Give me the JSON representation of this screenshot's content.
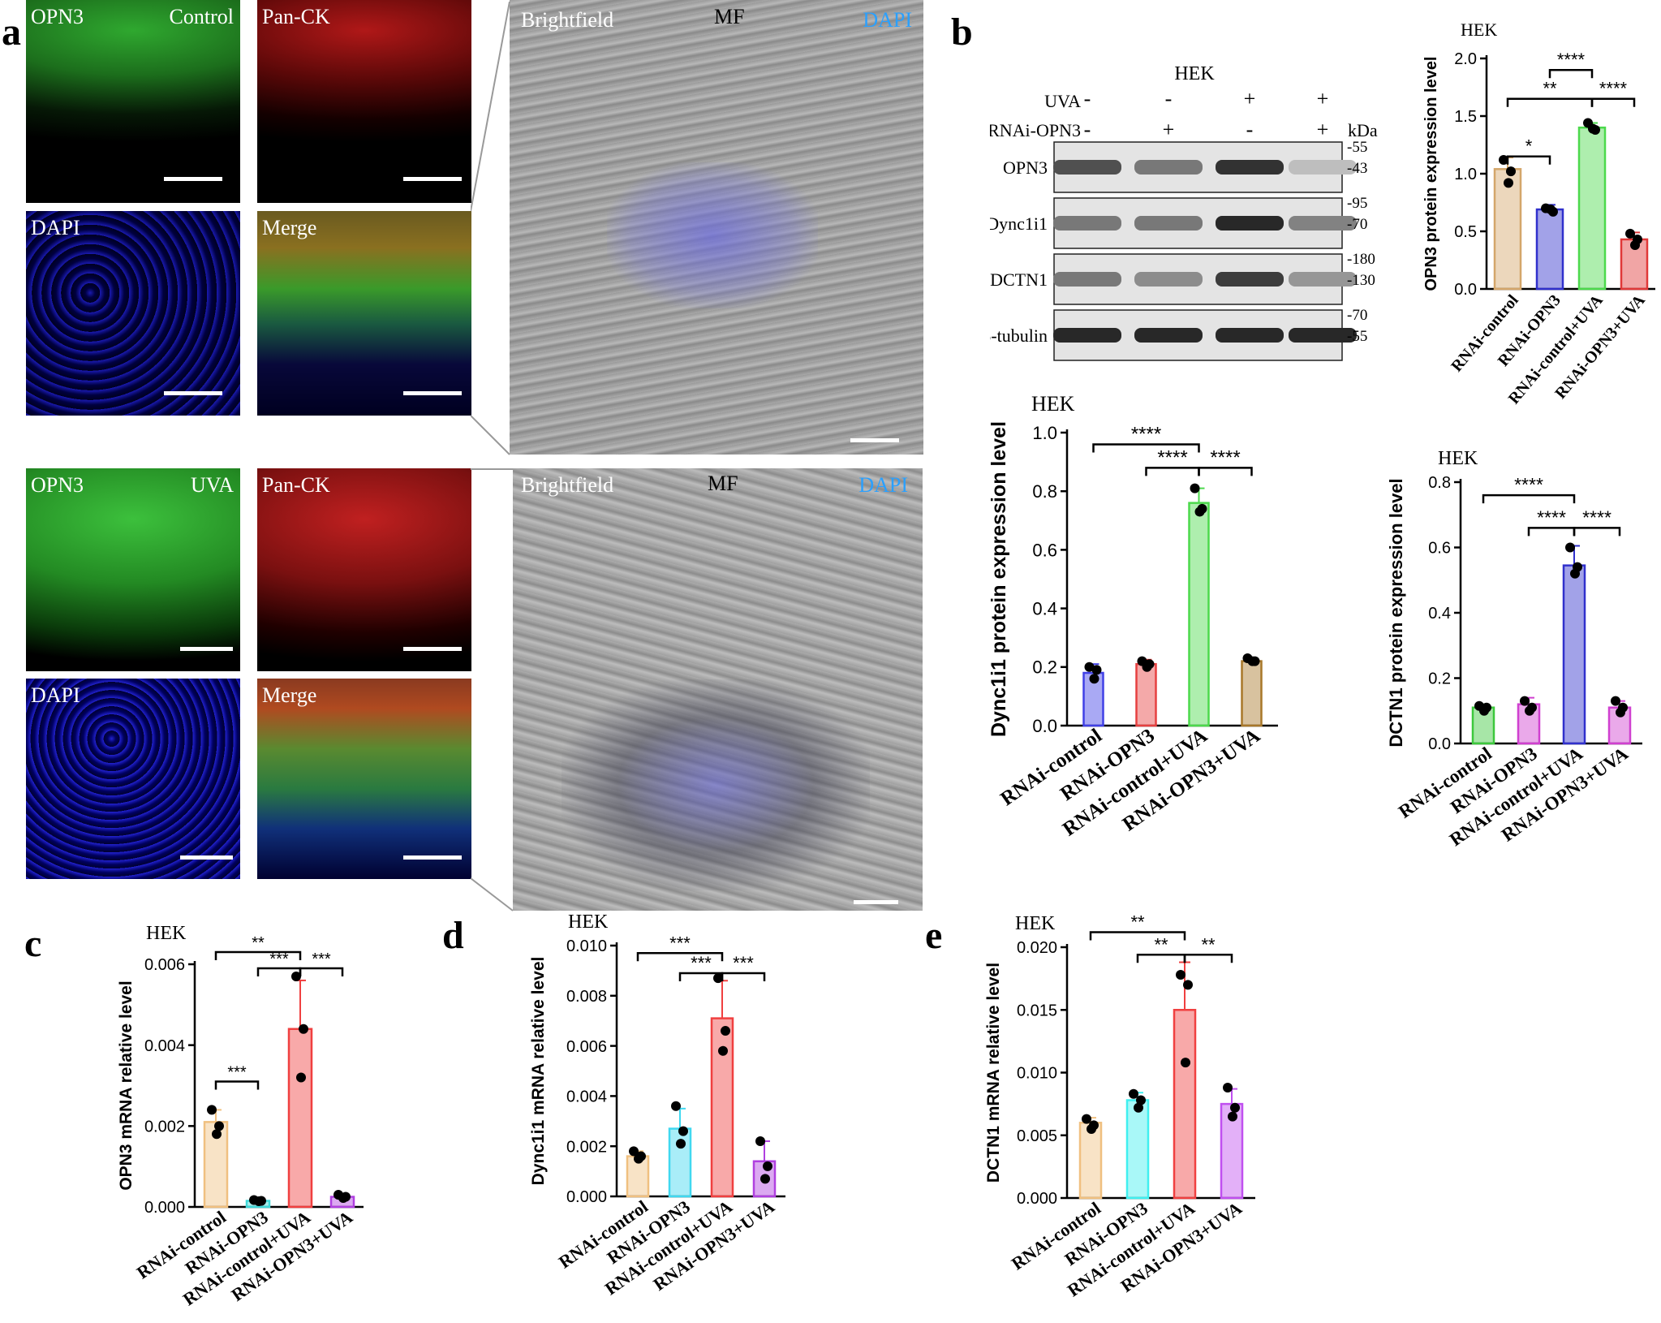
{
  "panels": {
    "a": "a",
    "b": "b",
    "c": "c",
    "d": "d",
    "e": "e"
  },
  "micrographs": {
    "control": {
      "opn3": {
        "label": "OPN3",
        "label2": "Control"
      },
      "panck": {
        "label": "Pan-CK"
      },
      "dapi": {
        "label": "DAPI"
      },
      "merge": {
        "label": "Merge"
      },
      "bright": {
        "label": "Brightfield",
        "mid": "MF",
        "right": "DAPI"
      }
    },
    "uva": {
      "opn3": {
        "label": "OPN3",
        "label2": "UVA"
      },
      "panck": {
        "label": "Pan-CK"
      },
      "dapi": {
        "label": "DAPI"
      },
      "merge": {
        "label": "Merge"
      },
      "bright": {
        "label": "Brightfield",
        "mid": "MF",
        "right": "DAPI"
      }
    }
  },
  "western_blot": {
    "title": "HEK",
    "uva_label": "UVA",
    "rnai_label": "RNAi-OPN3",
    "kda_label": "kDa",
    "uva_signs": [
      "-",
      "-",
      "+",
      "+"
    ],
    "rnai_signs": [
      "-",
      "+",
      "-",
      "+"
    ],
    "rows": [
      {
        "name": "OPN3",
        "markers": [
          "55",
          "43"
        ],
        "intensity": [
          0.75,
          0.55,
          0.9,
          0.2
        ]
      },
      {
        "name": "Dync1i1",
        "markers": [
          "95",
          "70"
        ],
        "intensity": [
          0.55,
          0.55,
          0.95,
          0.5
        ]
      },
      {
        "name": "DCTN1",
        "markers": [
          "180",
          "130"
        ],
        "intensity": [
          0.55,
          0.45,
          0.85,
          0.4
        ]
      },
      {
        "name": "β-tubulin",
        "markers": [
          "70",
          "55"
        ],
        "intensity": [
          0.95,
          0.95,
          0.95,
          0.95
        ]
      }
    ]
  },
  "chart_data": [
    {
      "id": "b_opn3",
      "type": "bar",
      "title": "HEK",
      "ylabel": "OPN3 protein expression level",
      "categories": [
        "RNAi-control",
        "RNAi-OPN3",
        "RNAi-control+UVA",
        "RNAi-OPN3+UVA"
      ],
      "values": [
        1.04,
        0.69,
        1.4,
        0.43
      ],
      "errors": [
        0.1,
        0.04,
        0.04,
        0.06
      ],
      "points": [
        [
          1.12,
          1.02,
          0.92
        ],
        [
          0.7,
          0.67,
          0.69
        ],
        [
          1.44,
          1.38,
          1.39
        ],
        [
          0.48,
          0.43,
          0.38
        ]
      ],
      "colors": [
        "#d4a66a",
        "#3030cc",
        "#4cd94c",
        "#e03838"
      ],
      "ylim": [
        0,
        2.0
      ],
      "yticks": [
        "0.0",
        "0.5",
        "1.0",
        "1.5",
        "2.0"
      ],
      "brackets": [
        {
          "from": 0,
          "to": 1,
          "y": 1.15,
          "label": "*"
        },
        {
          "from": 0,
          "to": 2,
          "y": 1.65,
          "label": "**"
        },
        {
          "from": 1,
          "to": 2,
          "y": 1.9,
          "label": "****"
        },
        {
          "from": 2,
          "to": 3,
          "y": 1.65,
          "label": "****"
        }
      ]
    },
    {
      "id": "b_dync",
      "type": "bar",
      "title": "HEK",
      "ylabel": "Dync1i1 protein expression level",
      "categories": [
        "RNAi-control",
        "RNAi-OPN3",
        "RNAi-control+UVA",
        "RNAi-OPN3+UVA"
      ],
      "values": [
        0.18,
        0.21,
        0.76,
        0.22
      ],
      "errors": [
        0.03,
        0.015,
        0.05,
        0.01
      ],
      "points": [
        [
          0.2,
          0.19,
          0.16
        ],
        [
          0.22,
          0.21,
          0.2
        ],
        [
          0.81,
          0.74,
          0.73
        ],
        [
          0.23,
          0.22,
          0.22
        ]
      ],
      "colors": [
        "#4040e6",
        "#e64040",
        "#4cd94c",
        "#a8782a"
      ],
      "ylim": [
        0,
        1.0
      ],
      "yticks": [
        "0.0",
        "0.2",
        "0.4",
        "0.6",
        "0.8",
        "1.0"
      ],
      "brackets": [
        {
          "from": 0,
          "to": 2,
          "y": 0.96,
          "label": "****"
        },
        {
          "from": 1,
          "to": 2,
          "y": 0.88,
          "label": "****"
        },
        {
          "from": 2,
          "to": 3,
          "y": 0.88,
          "label": "****"
        }
      ]
    },
    {
      "id": "b_dctn",
      "type": "bar",
      "title": "HEK",
      "ylabel": "DCTN1 protein expression level",
      "categories": [
        "RNAi-control",
        "RNAi-OPN3",
        "RNAi-control+UVA",
        "RNAi-OPN3+UVA"
      ],
      "values": [
        0.11,
        0.12,
        0.545,
        0.11
      ],
      "errors": [
        0.01,
        0.02,
        0.06,
        0.02
      ],
      "points": [
        [
          0.115,
          0.11,
          0.1
        ],
        [
          0.13,
          0.11,
          0.1
        ],
        [
          0.6,
          0.54,
          0.52
        ],
        [
          0.13,
          0.11,
          0.095
        ]
      ],
      "colors": [
        "#3cc83c",
        "#d040d0",
        "#3030cc",
        "#d040d0"
      ],
      "ylim": [
        0,
        0.8
      ],
      "yticks": [
        "0.0",
        "0.2",
        "0.4",
        "0.6",
        "0.8"
      ],
      "brackets": [
        {
          "from": 0,
          "to": 2,
          "y": 0.76,
          "label": "****"
        },
        {
          "from": 1,
          "to": 2,
          "y": 0.66,
          "label": "****"
        },
        {
          "from": 2,
          "to": 3,
          "y": 0.66,
          "label": "****"
        }
      ]
    },
    {
      "id": "c",
      "type": "bar",
      "title": "HEK",
      "ylabel": "OPN3 mRNA relative level",
      "categories": [
        "RNAi-control",
        "RNAi-OPN3",
        "RNAi-control+UVA",
        "RNAi-OPN3+UVA"
      ],
      "values": [
        0.0021,
        0.00015,
        0.0044,
        0.00025
      ],
      "errors": [
        0.0003,
        3e-05,
        0.0012,
        5e-05
      ],
      "points": [
        [
          0.0024,
          0.002,
          0.0018
        ],
        [
          0.00017,
          0.00015,
          0.00014
        ],
        [
          0.0057,
          0.0044,
          0.0032
        ],
        [
          0.0003,
          0.00025,
          0.00022
        ]
      ],
      "colors": [
        "#f0c080",
        "#40d8d8",
        "#f04040",
        "#b040e0"
      ],
      "ylim": [
        0,
        0.006
      ],
      "yticks": [
        "0.000",
        "0.002",
        "0.004",
        "0.006"
      ],
      "brackets": [
        {
          "from": 0,
          "to": 1,
          "y": 0.0031,
          "label": "***"
        },
        {
          "from": 0,
          "to": 2,
          "y": 0.0063,
          "label": "**"
        },
        {
          "from": 1,
          "to": 2,
          "y": 0.0059,
          "label": "***"
        },
        {
          "from": 2,
          "to": 3,
          "y": 0.0059,
          "label": "***"
        }
      ]
    },
    {
      "id": "d",
      "type": "bar",
      "title": "HEK",
      "ylabel": "Dync1i1 mRNA relative level",
      "categories": [
        "RNAi-control",
        "RNAi-OPN3",
        "RNAi-control+UVA",
        "RNAi-OPN3+UVA"
      ],
      "values": [
        0.0016,
        0.0027,
        0.0071,
        0.0014
      ],
      "errors": [
        0.0002,
        0.0008,
        0.0015,
        0.0008
      ],
      "points": [
        [
          0.0018,
          0.0016,
          0.0015
        ],
        [
          0.0036,
          0.0026,
          0.0021
        ],
        [
          0.0087,
          0.0066,
          0.0058
        ],
        [
          0.0022,
          0.0012,
          0.0007
        ]
      ],
      "colors": [
        "#f0c080",
        "#40d8f0",
        "#f04040",
        "#b040e0"
      ],
      "ylim": [
        0,
        0.01
      ],
      "yticks": [
        "0.000",
        "0.002",
        "0.004",
        "0.006",
        "0.008",
        "0.010"
      ],
      "brackets": [
        {
          "from": 0,
          "to": 2,
          "y": 0.0097,
          "label": "***"
        },
        {
          "from": 1,
          "to": 2,
          "y": 0.0089,
          "label": "***"
        },
        {
          "from": 2,
          "to": 3,
          "y": 0.0089,
          "label": "***"
        }
      ]
    },
    {
      "id": "e",
      "type": "bar",
      "title": "HEK",
      "ylabel": "DCTN1  mRNA relative level",
      "categories": [
        "RNAi-control",
        "RNAi-OPN3",
        "RNAi-control+UVA",
        "RNAi-OPN3+UVA"
      ],
      "values": [
        0.006,
        0.0078,
        0.015,
        0.0075
      ],
      "errors": [
        0.0004,
        0.0006,
        0.0038,
        0.0012
      ],
      "points": [
        [
          0.0063,
          0.0058,
          0.0055
        ],
        [
          0.0083,
          0.0078,
          0.0072
        ],
        [
          0.0178,
          0.017,
          0.0108
        ],
        [
          0.0088,
          0.0072,
          0.0065
        ]
      ],
      "colors": [
        "#f0c080",
        "#40f0f0",
        "#f04040",
        "#c050f0"
      ],
      "ylim": [
        0,
        0.02
      ],
      "yticks": [
        "0.000",
        "0.005",
        "0.010",
        "0.015",
        "0.020"
      ],
      "brackets": [
        {
          "from": 0,
          "to": 2,
          "y": 0.0212,
          "label": "**"
        },
        {
          "from": 1,
          "to": 2,
          "y": 0.0194,
          "label": "**"
        },
        {
          "from": 2,
          "to": 3,
          "y": 0.0194,
          "label": "**"
        }
      ]
    }
  ]
}
